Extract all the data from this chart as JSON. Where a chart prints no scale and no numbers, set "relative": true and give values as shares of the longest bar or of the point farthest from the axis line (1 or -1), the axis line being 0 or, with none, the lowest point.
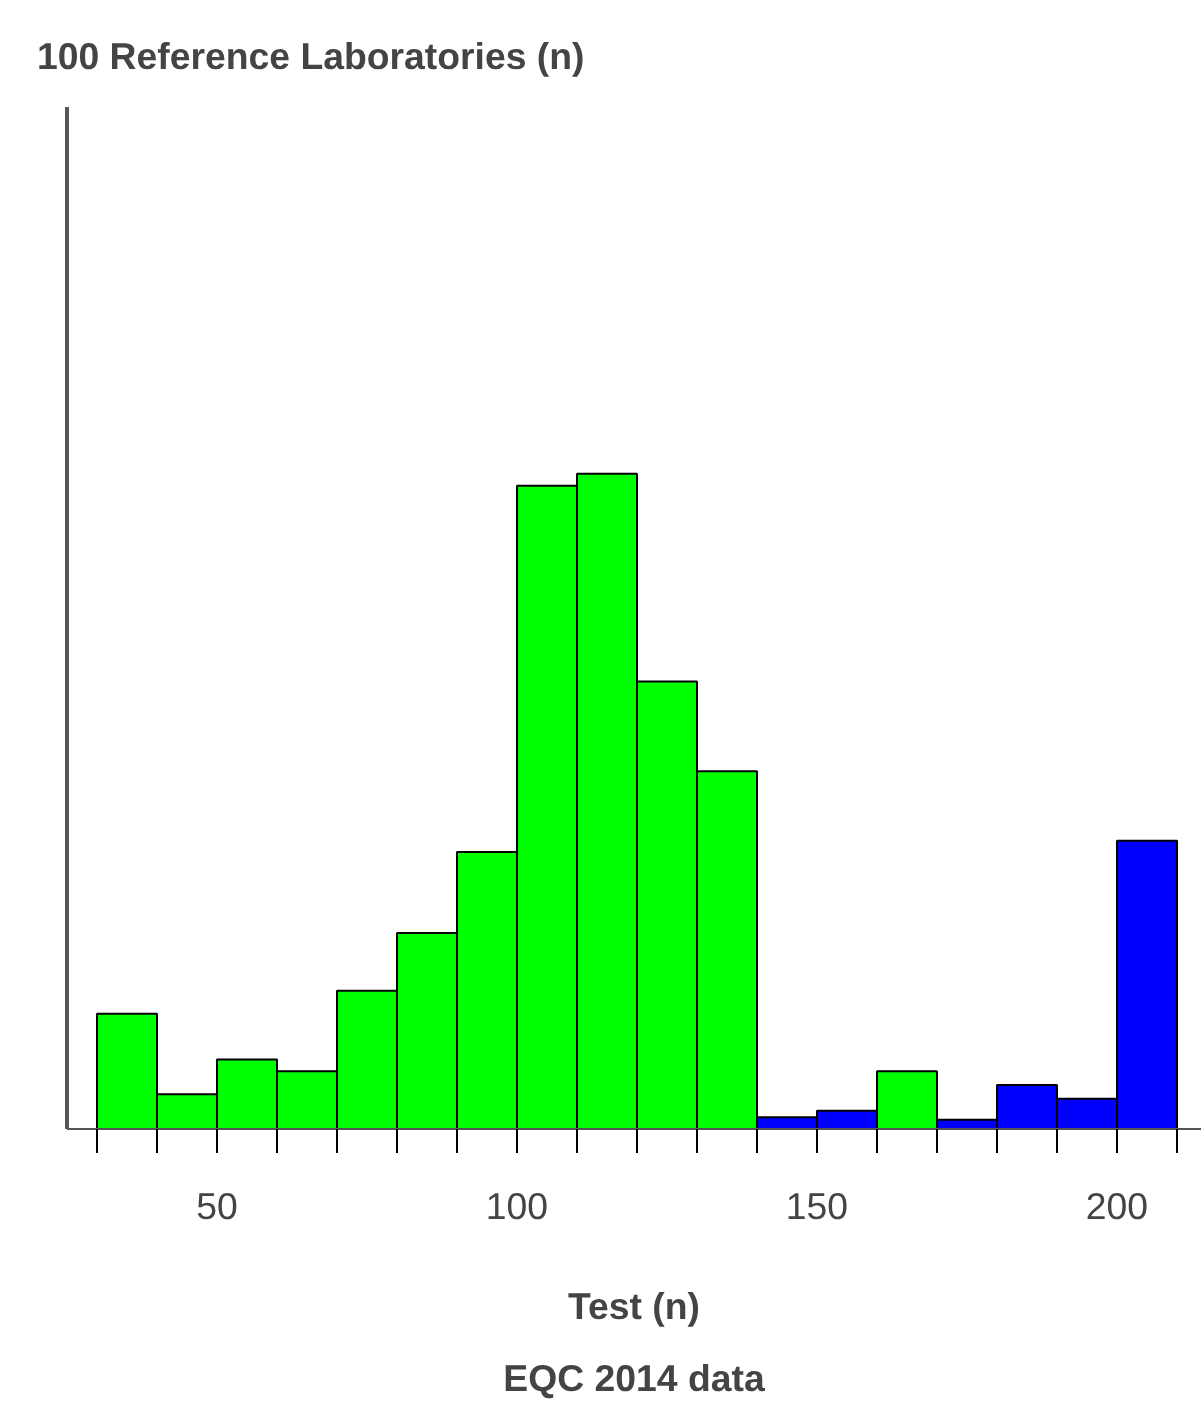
{
  "chart_data": {
    "type": "bar",
    "title": "100 Reference Laboratories (n)",
    "xlabel": "Test (n)",
    "annotations": [
      "EQC 2014 data"
    ],
    "x": [
      35,
      45,
      55,
      65,
      75,
      85,
      95,
      105,
      115,
      125,
      135,
      145,
      155,
      165,
      175,
      185,
      195,
      205
    ],
    "values": [
      0.176,
      0.053,
      0.106,
      0.088,
      0.211,
      0.299,
      0.423,
      0.982,
      1,
      0.683,
      0.546,
      0.018,
      0.028,
      0.088,
      0.014,
      0.067,
      0.046,
      0.44
    ],
    "colors": [
      "#00ff00",
      "#00ff00",
      "#00ff00",
      "#00ff00",
      "#00ff00",
      "#00ff00",
      "#00ff00",
      "#00ff00",
      "#00ff00",
      "#00ff00",
      "#00ff00",
      "#0000ff",
      "#0000ff",
      "#00ff00",
      "#0000ff",
      "#0000ff",
      "#0000ff",
      "#0000ff"
    ],
    "relative": true,
    "xlim": [
      25,
      214
    ],
    "xticks": [
      50,
      100,
      150,
      200
    ],
    "grid": false
  }
}
